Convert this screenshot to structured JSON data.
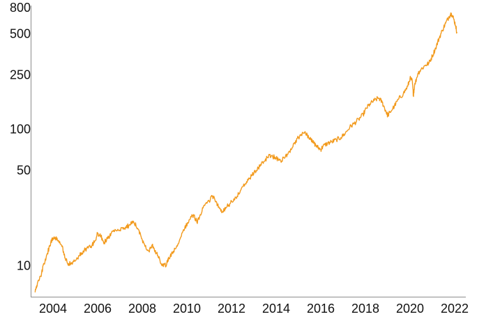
{
  "chart_data": {
    "type": "line",
    "title": "",
    "xlabel": "",
    "ylabel": "",
    "y_scale": "log",
    "ylim": [
      6,
      800
    ],
    "xlim": [
      2003.0,
      2022.5
    ],
    "grid": false,
    "legend": "none",
    "line_color": "#F29A1D",
    "axis_color": "#8C8C8C",
    "y_ticks": [
      {
        "value": 10,
        "label": "10"
      },
      {
        "value": 50,
        "label": "50"
      },
      {
        "value": 100,
        "label": "100"
      },
      {
        "value": 250,
        "label": "250"
      },
      {
        "value": 500,
        "label": "500"
      },
      {
        "value": 800,
        "label": "800"
      }
    ],
    "x_ticks": [
      {
        "value": 2004,
        "label": "2004"
      },
      {
        "value": 2006,
        "label": "2006"
      },
      {
        "value": 2008,
        "label": "2008"
      },
      {
        "value": 2010,
        "label": "2010"
      },
      {
        "value": 2012,
        "label": "2012"
      },
      {
        "value": 2014,
        "label": "2014"
      },
      {
        "value": 2016,
        "label": "2016"
      },
      {
        "value": 2018,
        "label": "2018"
      },
      {
        "value": 2020,
        "label": "2020"
      },
      {
        "value": 2022,
        "label": "2022"
      }
    ],
    "series": [
      {
        "x": [
          2003.2,
          2003.3,
          2003.45,
          2003.6,
          2003.75,
          2003.9,
          2004.05,
          2004.2,
          2004.4,
          2004.55,
          2004.7,
          2004.85,
          2005.0,
          2005.2,
          2005.35,
          2005.5,
          2005.7,
          2005.85,
          2006.0,
          2006.15,
          2006.3,
          2006.45,
          2006.6,
          2006.75,
          2007.0,
          2007.2,
          2007.4,
          2007.6,
          2007.8,
          2007.95,
          2008.1,
          2008.3,
          2008.45,
          2008.55,
          2008.7,
          2008.85,
          2008.95,
          2009.1,
          2009.2,
          2009.35,
          2009.5,
          2009.7,
          2009.9,
          2010.1,
          2010.3,
          2010.45,
          2010.6,
          2010.8,
          2011.0,
          2011.15,
          2011.3,
          2011.45,
          2011.6,
          2011.75,
          2011.95,
          2012.2,
          2012.4,
          2012.6,
          2012.8,
          2013.0,
          2013.2,
          2013.4,
          2013.6,
          2013.8,
          2014.0,
          2014.2,
          2014.4,
          2014.6,
          2014.8,
          2015.0,
          2015.2,
          2015.4,
          2015.55,
          2015.7,
          2015.85,
          2016.0,
          2016.1,
          2016.3,
          2016.5,
          2016.7,
          2016.9,
          2017.1,
          2017.3,
          2017.5,
          2017.7,
          2017.9,
          2018.05,
          2018.2,
          2018.4,
          2018.6,
          2018.75,
          2018.9,
          2019.0,
          2019.1,
          2019.3,
          2019.5,
          2019.7,
          2019.9,
          2020.0,
          2020.1,
          2020.15,
          2020.2,
          2020.35,
          2020.5,
          2020.7,
          2020.85,
          2021.0,
          2021.15,
          2021.3,
          2021.45,
          2021.6,
          2021.75,
          2021.85,
          2021.95,
          2022.05,
          2022.1
        ],
        "values": [
          6.5,
          7.5,
          8.5,
          10.5,
          12.5,
          15.0,
          16.5,
          15.5,
          14.0,
          11.5,
          10.5,
          10.5,
          11.0,
          12.0,
          13.0,
          13.5,
          14.0,
          15.0,
          17.5,
          16.5,
          15.0,
          16.0,
          17.5,
          18.0,
          18.5,
          19.0,
          20.0,
          21.5,
          19.0,
          16.5,
          14.5,
          13.0,
          14.5,
          13.0,
          12.0,
          10.5,
          10.0,
          10.5,
          11.5,
          12.5,
          13.5,
          16.0,
          19.0,
          22.0,
          24.0,
          21.0,
          24.0,
          28.0,
          30.0,
          33.0,
          30.0,
          27.0,
          25.0,
          27.0,
          29.0,
          32.0,
          36.0,
          40.0,
          44.0,
          48.0,
          53.0,
          58.0,
          63.0,
          65.0,
          62.0,
          60.0,
          63.0,
          70.0,
          80.0,
          88.0,
          96.0,
          92.0,
          85.0,
          80.0,
          75.0,
          72.0,
          76.0,
          80.0,
          82.0,
          85.0,
          88.0,
          95.0,
          105.0,
          112.0,
          120.0,
          130.0,
          145.0,
          155.0,
          165.0,
          172.0,
          160.0,
          140.0,
          128.0,
          135.0,
          150.0,
          170.0,
          185.0,
          210.0,
          240.0,
          230.0,
          180.0,
          210.0,
          260.0,
          280.0,
          300.0,
          310.0,
          350.0,
          400.0,
          470.0,
          540.0,
          610.0,
          680.0,
          720.0,
          660.0,
          580.0,
          520.0
        ]
      }
    ]
  }
}
